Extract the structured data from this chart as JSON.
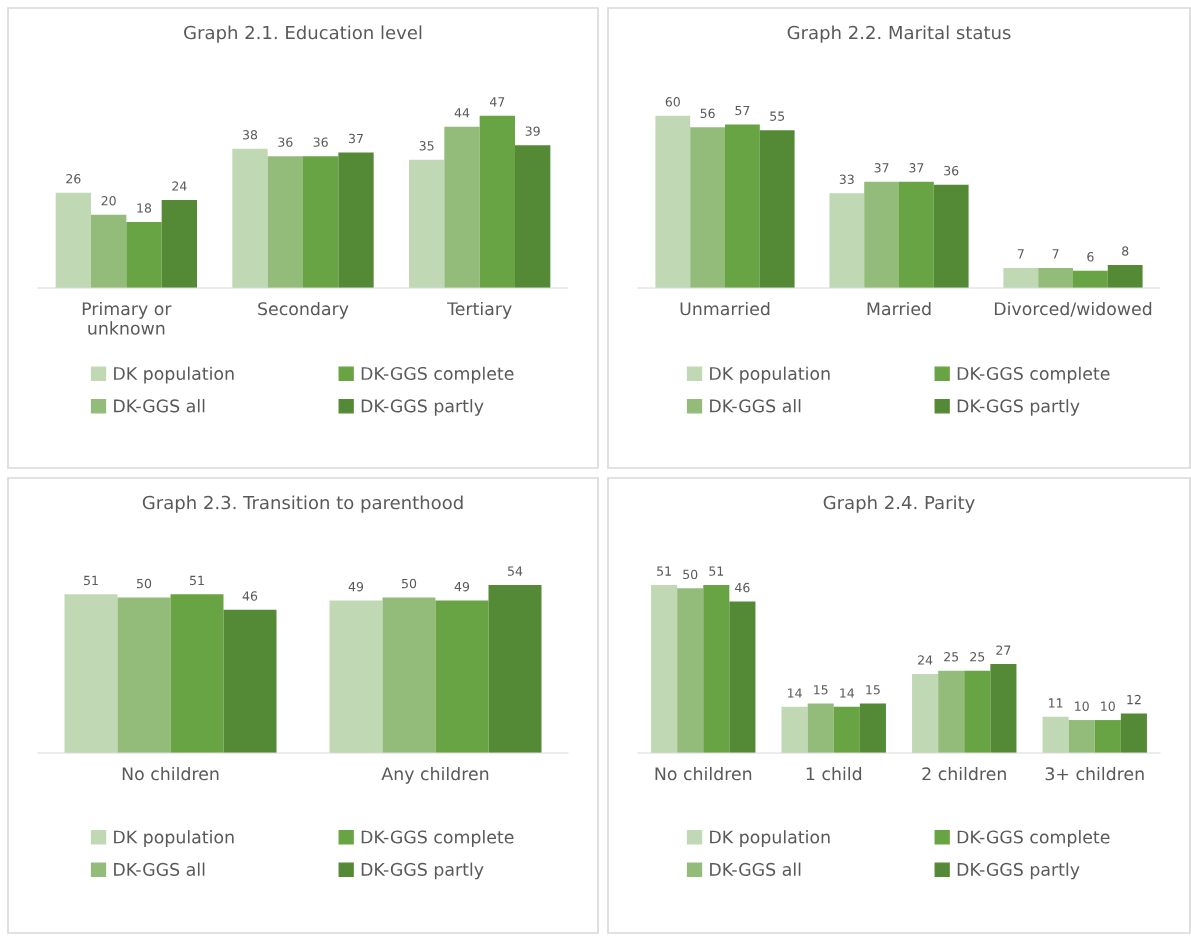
{
  "chart_data": [
    {
      "type": "bar",
      "title": "Graph 2.1. Education level",
      "categories": [
        "Primary or\nunknown",
        "Secondary",
        "Tertiary"
      ],
      "data_labels": true,
      "legend": "bottom",
      "grid": false,
      "tick_labels": "x",
      "series": [
        {
          "name": "DK population",
          "color": "#c0d9b4",
          "values": [
            26,
            38,
            35
          ]
        },
        {
          "name": "DK-GGS all",
          "color": "#93bc7b",
          "values": [
            20,
            36,
            44
          ]
        },
        {
          "name": "DK-GGS complete",
          "color": "#68a443",
          "values": [
            18,
            36,
            47
          ]
        },
        {
          "name": "DK-GGS partly",
          "color": "#548a36",
          "values": [
            24,
            37,
            39
          ]
        }
      ]
    },
    {
      "type": "bar",
      "title": "Graph 2.2. Marital status",
      "categories": [
        "Unmarried",
        "Married",
        "Divorced/widowed"
      ],
      "data_labels": true,
      "legend": "bottom",
      "grid": false,
      "tick_labels": "x",
      "series": [
        {
          "name": "DK population",
          "color": "#c0d9b4",
          "values": [
            60,
            33,
            7
          ]
        },
        {
          "name": "DK-GGS all",
          "color": "#93bc7b",
          "values": [
            56,
            37,
            7
          ]
        },
        {
          "name": "DK-GGS complete",
          "color": "#68a443",
          "values": [
            57,
            37,
            6
          ]
        },
        {
          "name": "DK-GGS partly",
          "color": "#548a36",
          "values": [
            55,
            36,
            8
          ]
        }
      ]
    },
    {
      "type": "bar",
      "title": "Graph 2.3. Transition to parenthood",
      "categories": [
        "No children",
        "Any children"
      ],
      "data_labels": true,
      "legend": "bottom",
      "grid": false,
      "tick_labels": "x",
      "series": [
        {
          "name": "DK population",
          "color": "#c0d9b4",
          "values": [
            51,
            49
          ]
        },
        {
          "name": "DK-GGS all",
          "color": "#93bc7b",
          "values": [
            50,
            50
          ]
        },
        {
          "name": "DK-GGS complete",
          "color": "#68a443",
          "values": [
            51,
            49
          ]
        },
        {
          "name": "DK-GGS partly",
          "color": "#548a36",
          "values": [
            46,
            54
          ]
        }
      ]
    },
    {
      "type": "bar",
      "title": "Graph 2.4. Parity",
      "categories": [
        "No children",
        "1 child",
        "2 children",
        "3+ children"
      ],
      "data_labels": true,
      "legend": "bottom",
      "grid": false,
      "tick_labels": "x",
      "series": [
        {
          "name": "DK population",
          "color": "#c0d9b4",
          "values": [
            51,
            14,
            24,
            11
          ]
        },
        {
          "name": "DK-GGS all",
          "color": "#93bc7b",
          "values": [
            50,
            15,
            25,
            10
          ]
        },
        {
          "name": "DK-GGS complete",
          "color": "#68a443",
          "values": [
            51,
            14,
            25,
            10
          ]
        },
        {
          "name": "DK-GGS partly",
          "color": "#548a36",
          "values": [
            46,
            15,
            27,
            12
          ]
        }
      ]
    }
  ]
}
